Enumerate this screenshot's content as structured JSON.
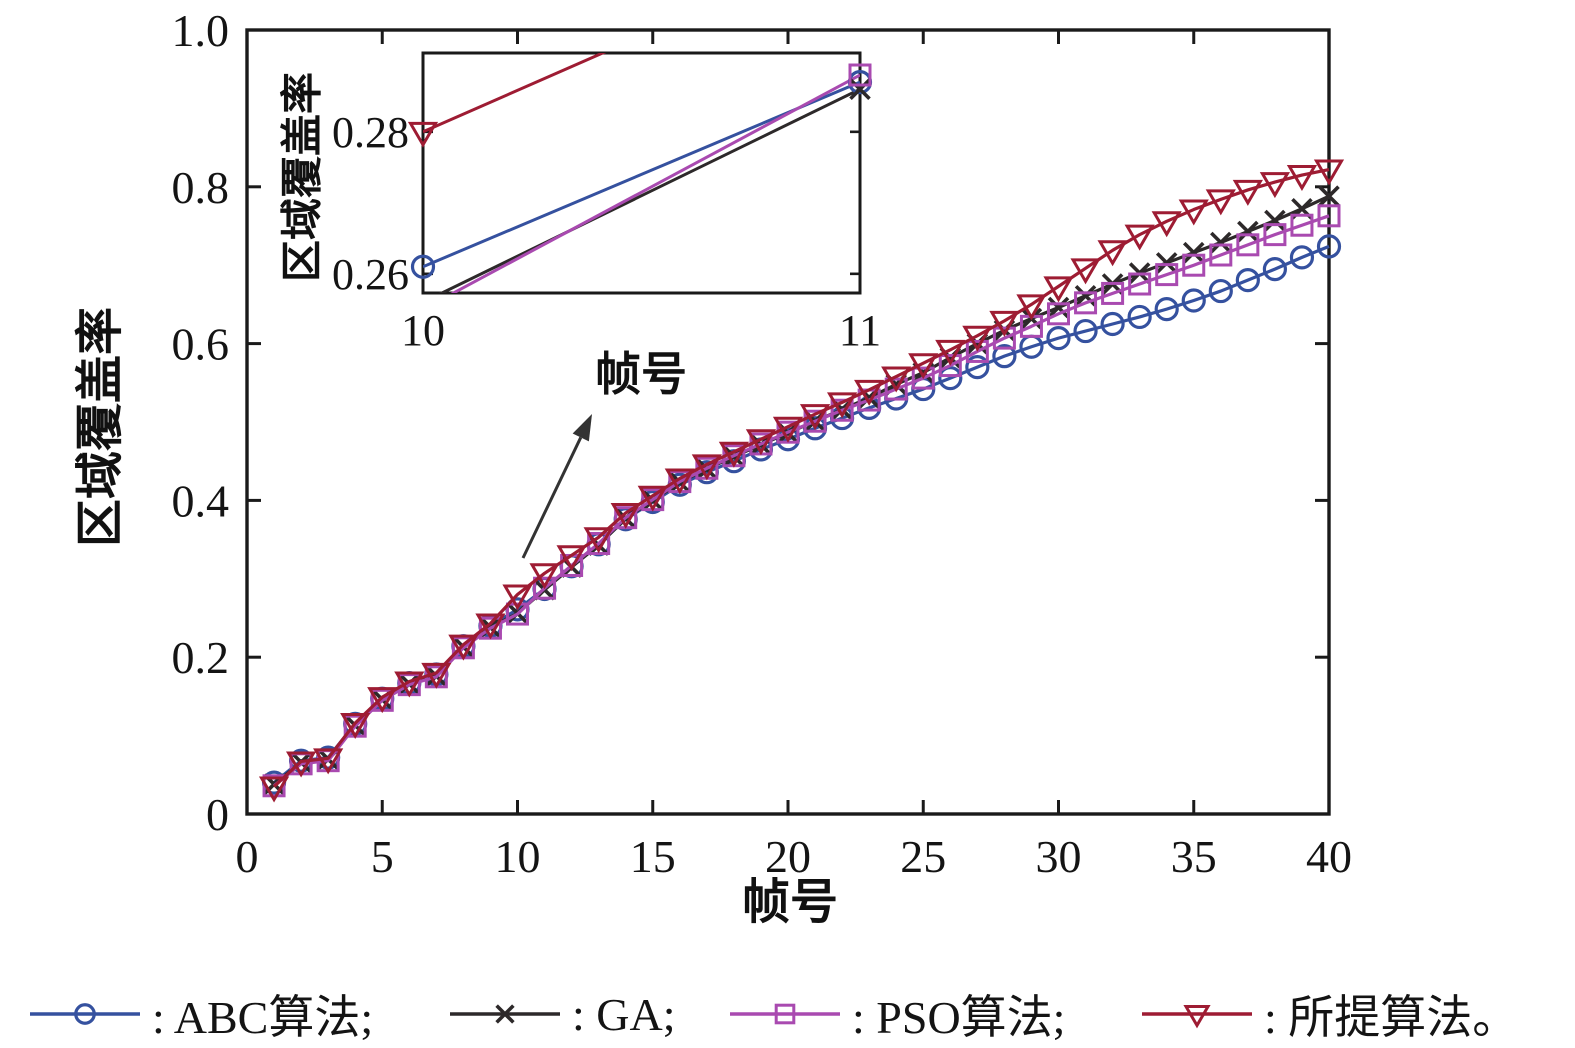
{
  "main_axes": {
    "ylabel": "区域覆盖率",
    "xlabel": "帧号",
    "xlim": [
      0,
      40
    ],
    "ylim": [
      0,
      1.0
    ],
    "xticks": [
      0,
      5,
      10,
      15,
      20,
      25,
      30,
      35,
      40
    ],
    "xtick_labels": [
      "0",
      "5",
      "10",
      "15",
      "20",
      "25",
      "30",
      "35",
      "40"
    ],
    "yticks": [
      0,
      0.2,
      0.4,
      0.6,
      0.8,
      1.0
    ],
    "ytick_labels": [
      "0",
      "0.2",
      "0.4",
      "0.6",
      "0.8",
      "1.0"
    ]
  },
  "inset_axes": {
    "ylabel": "区域覆盖率",
    "xlabel": "帧号",
    "xlim": [
      10,
      11
    ],
    "ylim": [
      0.2573,
      0.2911
    ],
    "xticks": [
      10,
      11
    ],
    "xtick_labels": [
      "10",
      "11"
    ],
    "yticks": [
      0.26,
      0.28
    ],
    "ytick_labels": [
      "0.26",
      "0.28"
    ]
  },
  "annotation": {
    "label": "帧号"
  },
  "legend": {
    "items": [
      {
        "label": ": ABC算法;"
      },
      {
        "label": ": GA;"
      },
      {
        "label": ": PSO算法;"
      },
      {
        "label": ": 所提算法。"
      }
    ]
  },
  "chart_data": {
    "type": "line",
    "title": "",
    "xlabel": "帧号",
    "ylabel": "区域覆盖率",
    "xlim": [
      0,
      40
    ],
    "ylim": [
      0,
      1.0
    ],
    "grid": false,
    "legend_position": "below",
    "inset": {
      "xlim": [
        10,
        11
      ],
      "ylim": [
        0.2573,
        0.2911
      ],
      "x_indices": [
        9,
        10
      ]
    },
    "x": [
      1,
      2,
      3,
      4,
      5,
      6,
      7,
      8,
      9,
      10,
      11,
      12,
      13,
      14,
      15,
      16,
      17,
      18,
      19,
      20,
      21,
      22,
      23,
      24,
      25,
      26,
      27,
      28,
      29,
      30,
      31,
      32,
      33,
      34,
      35,
      36,
      37,
      38,
      39,
      40
    ],
    "series": [
      {
        "name": "ABC算法",
        "color": "#35519f",
        "marker": "circle",
        "values": [
          0.04,
          0.068,
          0.072,
          0.115,
          0.147,
          0.167,
          0.178,
          0.214,
          0.24,
          0.261,
          0.287,
          0.316,
          0.344,
          0.376,
          0.398,
          0.42,
          0.436,
          0.45,
          0.465,
          0.478,
          0.492,
          0.505,
          0.518,
          0.53,
          0.542,
          0.556,
          0.57,
          0.584,
          0.596,
          0.607,
          0.616,
          0.625,
          0.634,
          0.644,
          0.655,
          0.667,
          0.681,
          0.695,
          0.71,
          0.724
        ]
      },
      {
        "name": "GA",
        "color": "#2d292a",
        "marker": "x",
        "values": [
          0.038,
          0.066,
          0.07,
          0.113,
          0.146,
          0.166,
          0.176,
          0.213,
          0.238,
          0.256,
          0.286,
          0.315,
          0.343,
          0.377,
          0.4,
          0.423,
          0.44,
          0.456,
          0.471,
          0.486,
          0.501,
          0.516,
          0.531,
          0.548,
          0.563,
          0.582,
          0.6,
          0.617,
          0.632,
          0.646,
          0.661,
          0.676,
          0.69,
          0.703,
          0.716,
          0.729,
          0.743,
          0.757,
          0.772,
          0.788
        ]
      },
      {
        "name": "PSO算法",
        "color": "#a94ab0",
        "marker": "square",
        "values": [
          0.036,
          0.064,
          0.068,
          0.112,
          0.145,
          0.165,
          0.175,
          0.212,
          0.237,
          0.255,
          0.288,
          0.317,
          0.345,
          0.378,
          0.401,
          0.424,
          0.441,
          0.457,
          0.472,
          0.487,
          0.501,
          0.515,
          0.528,
          0.542,
          0.556,
          0.572,
          0.59,
          0.607,
          0.622,
          0.638,
          0.652,
          0.664,
          0.676,
          0.688,
          0.7,
          0.713,
          0.726,
          0.739,
          0.751,
          0.763
        ]
      },
      {
        "name": "所提算法",
        "color": "#9e1c33",
        "marker": "triangle-down",
        "values": [
          0.035,
          0.067,
          0.071,
          0.116,
          0.149,
          0.169,
          0.18,
          0.216,
          0.243,
          0.28,
          0.307,
          0.33,
          0.353,
          0.384,
          0.406,
          0.428,
          0.446,
          0.462,
          0.478,
          0.494,
          0.51,
          0.525,
          0.541,
          0.558,
          0.575,
          0.592,
          0.61,
          0.629,
          0.65,
          0.673,
          0.696,
          0.719,
          0.739,
          0.756,
          0.771,
          0.784,
          0.796,
          0.806,
          0.815,
          0.822
        ]
      }
    ]
  }
}
